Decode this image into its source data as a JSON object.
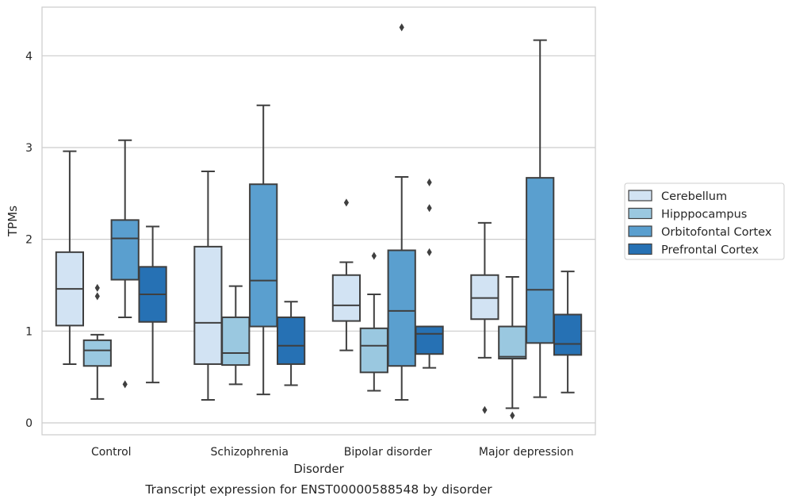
{
  "chart_data": {
    "type": "box",
    "title": "",
    "caption": "Transcript expression for ENST00000588548 by disorder",
    "xlabel": "Disorder",
    "ylabel": "TPMs",
    "ylim": [
      -0.13,
      4.53
    ],
    "yticks": [
      0,
      1,
      2,
      3,
      4
    ],
    "grid": "horizontal",
    "legend_position": "right",
    "categories": [
      "Control",
      "Schizophrenia",
      "Bipolar disorder",
      "Major depression"
    ],
    "series": [
      {
        "name": "Cerebellum",
        "color": "#d2e3f3",
        "boxes": [
          {
            "whislo": 0.64,
            "q1": 1.06,
            "med": 1.46,
            "q3": 1.86,
            "whishi": 2.96,
            "fliers": []
          },
          {
            "whislo": 0.25,
            "q1": 0.64,
            "med": 1.09,
            "q3": 1.92,
            "whishi": 2.74,
            "fliers": []
          },
          {
            "whislo": 0.79,
            "q1": 1.11,
            "med": 1.28,
            "q3": 1.61,
            "whishi": 1.75,
            "fliers": [
              2.4
            ]
          },
          {
            "whislo": 0.71,
            "q1": 1.13,
            "med": 1.36,
            "q3": 1.61,
            "whishi": 2.18,
            "fliers": [
              0.14
            ]
          }
        ]
      },
      {
        "name": "Hipppocampus",
        "color": "#9ac8e0",
        "boxes": [
          {
            "whislo": 0.26,
            "q1": 0.62,
            "med": 0.79,
            "q3": 0.9,
            "whishi": 0.96,
            "fliers": [
              1.47,
              1.38
            ]
          },
          {
            "whislo": 0.42,
            "q1": 0.63,
            "med": 0.76,
            "q3": 1.15,
            "whishi": 1.49,
            "fliers": []
          },
          {
            "whislo": 0.35,
            "q1": 0.55,
            "med": 0.84,
            "q3": 1.03,
            "whishi": 1.4,
            "fliers": [
              1.82
            ]
          },
          {
            "whislo": 0.16,
            "q1": 0.7,
            "med": 0.72,
            "q3": 1.05,
            "whishi": 1.59,
            "fliers": [
              0.08
            ]
          }
        ]
      },
      {
        "name": "Orbitofontal Cortex",
        "color": "#5a9fcf",
        "boxes": [
          {
            "whislo": 1.15,
            "q1": 1.56,
            "med": 2.01,
            "q3": 2.21,
            "whishi": 3.08,
            "fliers": [
              0.42
            ]
          },
          {
            "whislo": 0.31,
            "q1": 1.05,
            "med": 1.55,
            "q3": 2.6,
            "whishi": 3.46,
            "fliers": []
          },
          {
            "whislo": 0.25,
            "q1": 0.62,
            "med": 1.22,
            "q3": 1.88,
            "whishi": 2.68,
            "fliers": [
              4.31
            ]
          },
          {
            "whislo": 0.28,
            "q1": 0.87,
            "med": 1.45,
            "q3": 2.67,
            "whishi": 4.17,
            "fliers": []
          }
        ]
      },
      {
        "name": "Prefrontal Cortex",
        "color": "#2671b4",
        "boxes": [
          {
            "whislo": 0.44,
            "q1": 1.1,
            "med": 1.4,
            "q3": 1.7,
            "whishi": 2.14,
            "fliers": []
          },
          {
            "whislo": 0.41,
            "q1": 0.64,
            "med": 0.84,
            "q3": 1.15,
            "whishi": 1.32,
            "fliers": []
          },
          {
            "whislo": 0.6,
            "q1": 0.75,
            "med": 0.97,
            "q3": 1.05,
            "whishi": 1.05,
            "fliers": [
              2.62,
              2.34,
              1.86
            ]
          },
          {
            "whislo": 0.33,
            "q1": 0.74,
            "med": 0.86,
            "q3": 1.18,
            "whishi": 1.65,
            "fliers": []
          }
        ]
      }
    ]
  }
}
